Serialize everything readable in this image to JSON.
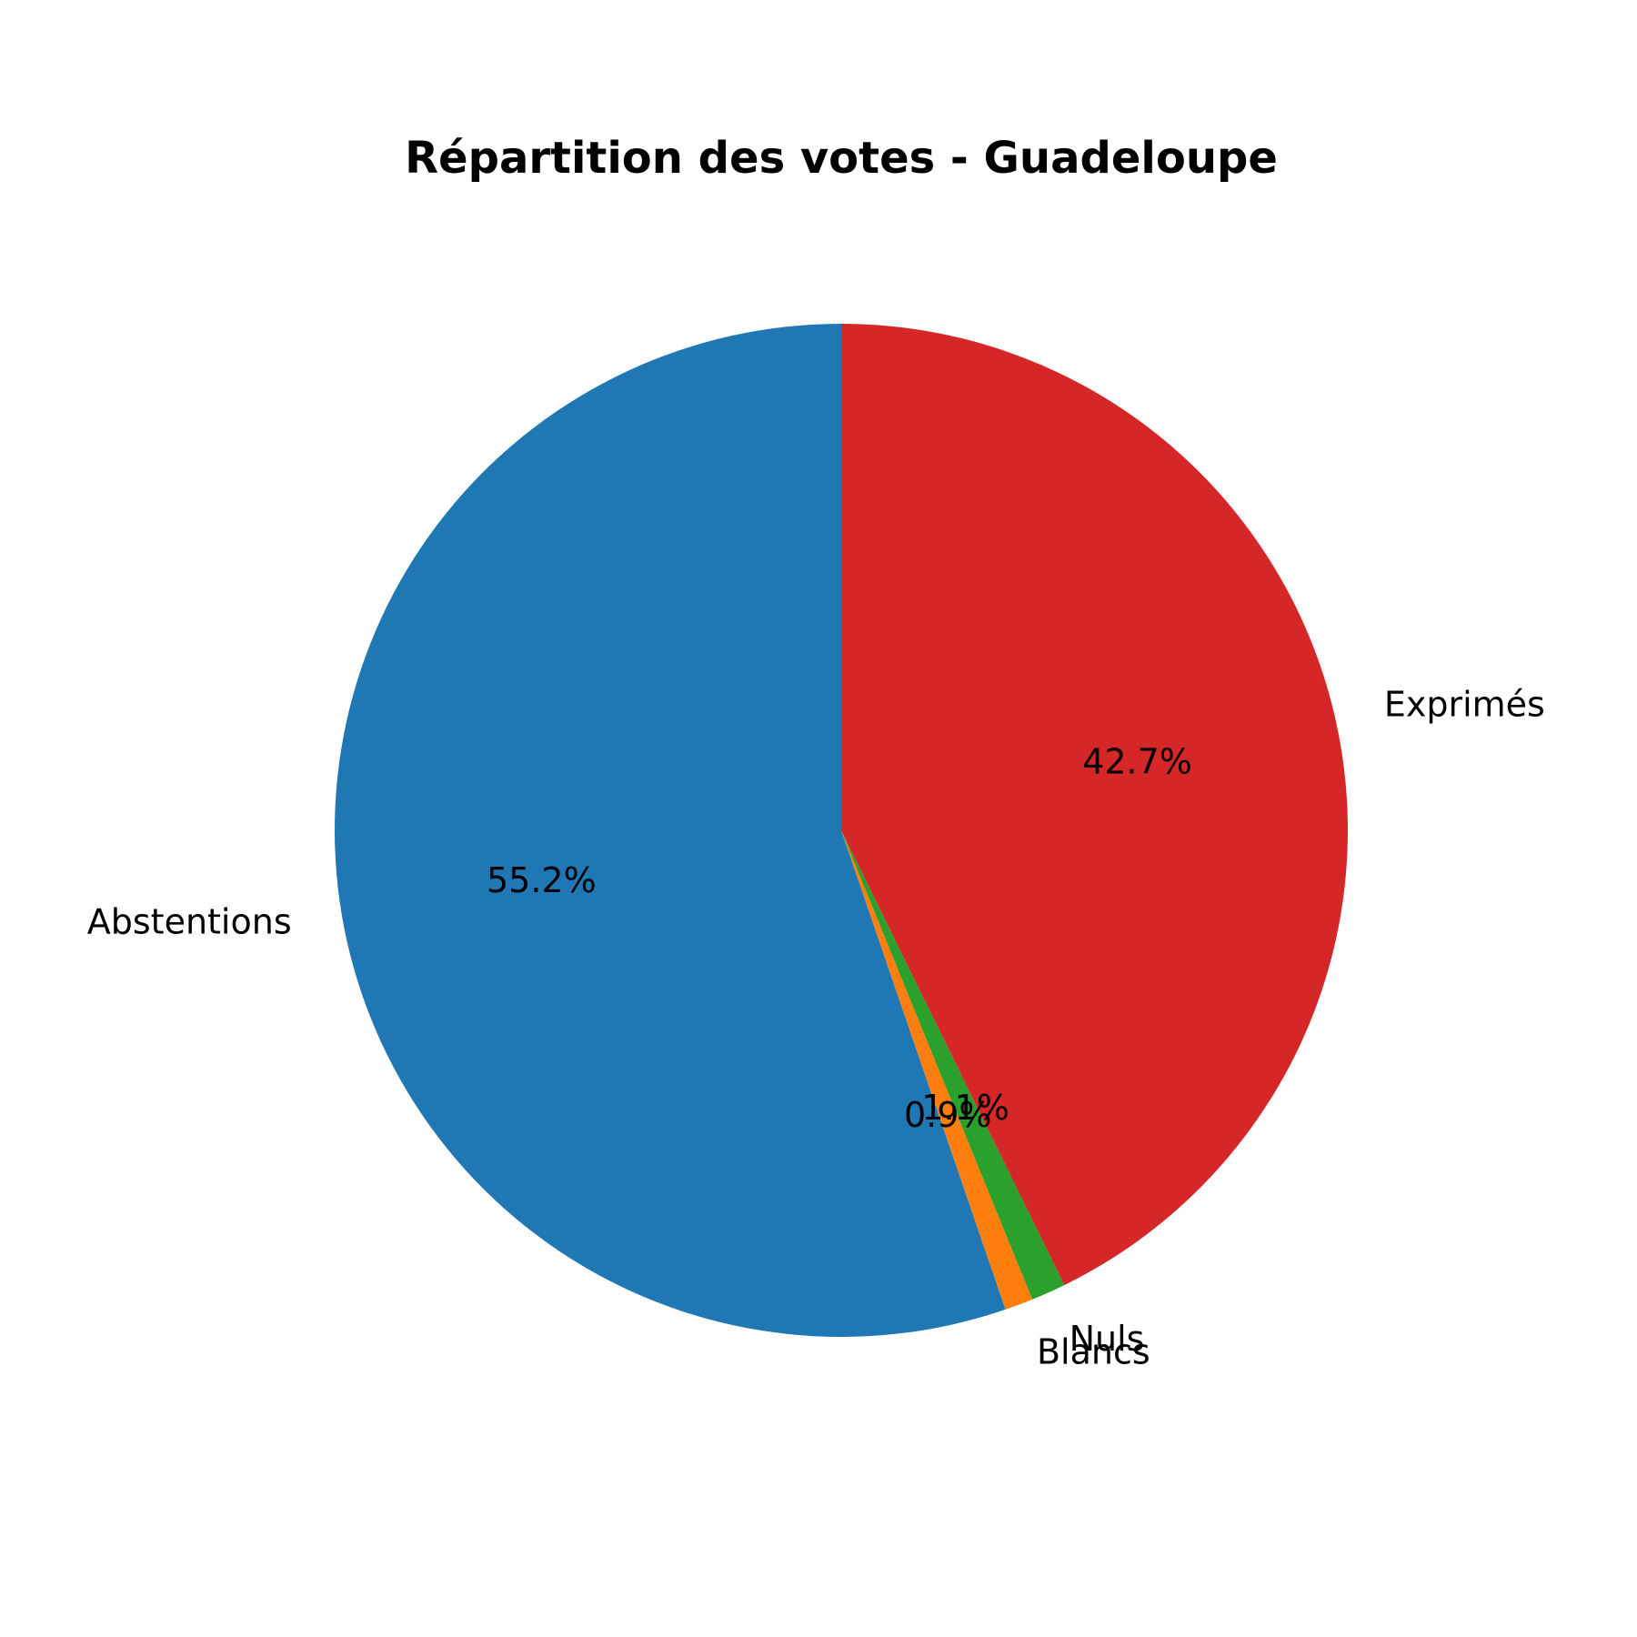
{
  "chart_data": {
    "type": "pie",
    "title": "Répartition des votes - Guadeloupe",
    "slices": [
      {
        "label": "Abstentions",
        "value": 55.2,
        "pct_label": "55.2%",
        "color": "#1f77b4"
      },
      {
        "label": "Blancs",
        "value": 0.9,
        "pct_label": "0.9%",
        "color": "#ff7f0e"
      },
      {
        "label": "Nuls",
        "value": 1.1,
        "pct_label": "1.1%",
        "color": "#2ca02c"
      },
      {
        "label": "Exprimés",
        "value": 42.7,
        "pct_label": "42.7%",
        "color": "#d62728"
      }
    ],
    "start_angle_deg": 90,
    "direction": "counterclockwise"
  }
}
